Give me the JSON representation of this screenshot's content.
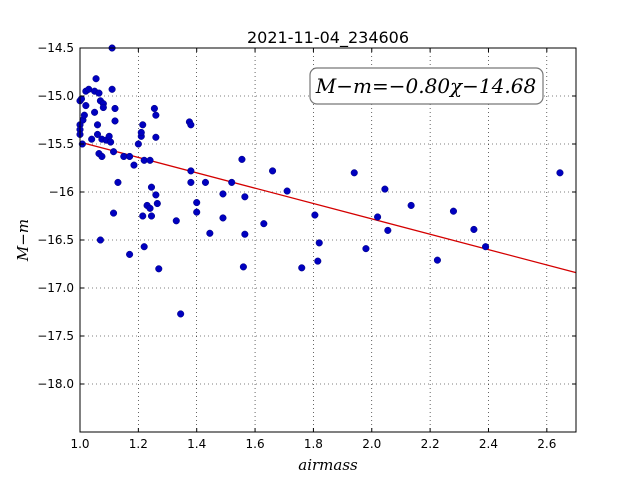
{
  "chart_data": {
    "type": "scatter",
    "title": "2021-11-04_234606",
    "xlabel": "airmass",
    "ylabel": "M−m",
    "xlim": [
      1.0,
      2.7
    ],
    "ylim": [
      -14.5,
      -18.5
    ],
    "y_inverted": true,
    "grid": true,
    "grid_style": "dotted",
    "x_ticks": [
      1.0,
      1.2,
      1.4,
      1.6,
      1.8,
      2.0,
      2.2,
      2.4,
      2.6
    ],
    "x_tick_labels": [
      "1.0",
      "1.2",
      "1.4",
      "1.6",
      "1.8",
      "2.0",
      "2.2",
      "2.4",
      "2.6"
    ],
    "y_ticks": [
      -14.5,
      -15.0,
      -15.5,
      -16.0,
      -16.5,
      -17.0,
      -17.5,
      -18.0
    ],
    "y_tick_labels": [
      "−14.5",
      "−15.0",
      "−15.5",
      "−16",
      "−16.5",
      "−17.0",
      "−17.5",
      "−18.0"
    ],
    "annotation": "M−m=−0.80χ−14.68",
    "annotation_placement": "top-right",
    "fit": {
      "slope": -0.8,
      "intercept": -14.68,
      "color": "#d40000"
    },
    "marker_color": "#0000bf",
    "points": [
      [
        1.0,
        -15.05
      ],
      [
        1.0,
        -15.3
      ],
      [
        1.0,
        -15.35
      ],
      [
        1.0,
        -15.4
      ],
      [
        1.005,
        -15.03
      ],
      [
        1.008,
        -15.5
      ],
      [
        1.01,
        -15.25
      ],
      [
        1.015,
        -15.2
      ],
      [
        1.02,
        -14.95
      ],
      [
        1.02,
        -15.1
      ],
      [
        1.03,
        -14.93
      ],
      [
        1.04,
        -15.45
      ],
      [
        1.05,
        -14.95
      ],
      [
        1.05,
        -15.17
      ],
      [
        1.055,
        -14.82
      ],
      [
        1.06,
        -15.3
      ],
      [
        1.06,
        -15.4
      ],
      [
        1.065,
        -14.97
      ],
      [
        1.065,
        -15.6
      ],
      [
        1.07,
        -15.05
      ],
      [
        1.075,
        -15.45
      ],
      [
        1.075,
        -15.63
      ],
      [
        1.08,
        -15.08
      ],
      [
        1.08,
        -15.12
      ],
      [
        1.09,
        -15.46
      ],
      [
        1.1,
        -15.42
      ],
      [
        1.105,
        -15.48
      ],
      [
        1.11,
        -14.5
      ],
      [
        1.11,
        -14.93
      ],
      [
        1.115,
        -15.58
      ],
      [
        1.12,
        -15.26
      ],
      [
        1.12,
        -15.13
      ],
      [
        1.13,
        -15.9
      ],
      [
        1.115,
        -16.22
      ],
      [
        1.07,
        -16.5
      ],
      [
        1.15,
        -15.63
      ],
      [
        1.17,
        -15.63
      ],
      [
        1.17,
        -16.65
      ],
      [
        1.185,
        -15.72
      ],
      [
        1.2,
        -15.5
      ],
      [
        1.21,
        -15.42
      ],
      [
        1.21,
        -15.38
      ],
      [
        1.215,
        -15.3
      ],
      [
        1.215,
        -16.25
      ],
      [
        1.22,
        -15.67
      ],
      [
        1.22,
        -16.57
      ],
      [
        1.23,
        -16.14
      ],
      [
        1.24,
        -15.67
      ],
      [
        1.24,
        -16.17
      ],
      [
        1.245,
        -15.95
      ],
      [
        1.245,
        -16.25
      ],
      [
        1.255,
        -15.13
      ],
      [
        1.26,
        -15.2
      ],
      [
        1.26,
        -15.43
      ],
      [
        1.26,
        -16.03
      ],
      [
        1.265,
        -16.12
      ],
      [
        1.27,
        -16.8
      ],
      [
        1.33,
        -16.3
      ],
      [
        1.345,
        -17.27
      ],
      [
        1.375,
        -15.27
      ],
      [
        1.38,
        -15.3
      ],
      [
        1.38,
        -15.78
      ],
      [
        1.38,
        -15.9
      ],
      [
        1.4,
        -16.11
      ],
      [
        1.4,
        -16.21
      ],
      [
        1.43,
        -15.9
      ],
      [
        1.445,
        -16.43
      ],
      [
        1.49,
        -16.02
      ],
      [
        1.49,
        -16.27
      ],
      [
        1.52,
        -15.9
      ],
      [
        1.555,
        -15.66
      ],
      [
        1.56,
        -16.78
      ],
      [
        1.565,
        -16.05
      ],
      [
        1.565,
        -16.44
      ],
      [
        1.63,
        -16.33
      ],
      [
        1.66,
        -15.78
      ],
      [
        1.71,
        -15.99
      ],
      [
        1.76,
        -16.79
      ],
      [
        1.805,
        -16.24
      ],
      [
        1.815,
        -16.72
      ],
      [
        1.82,
        -16.53
      ],
      [
        1.94,
        -15.8
      ],
      [
        1.98,
        -16.59
      ],
      [
        2.02,
        -16.26
      ],
      [
        2.045,
        -15.97
      ],
      [
        2.055,
        -16.4
      ],
      [
        2.135,
        -16.14
      ],
      [
        2.225,
        -16.71
      ],
      [
        2.28,
        -16.2
      ],
      [
        2.35,
        -16.39
      ],
      [
        2.39,
        -16.57
      ],
      [
        2.645,
        -15.8
      ]
    ]
  }
}
